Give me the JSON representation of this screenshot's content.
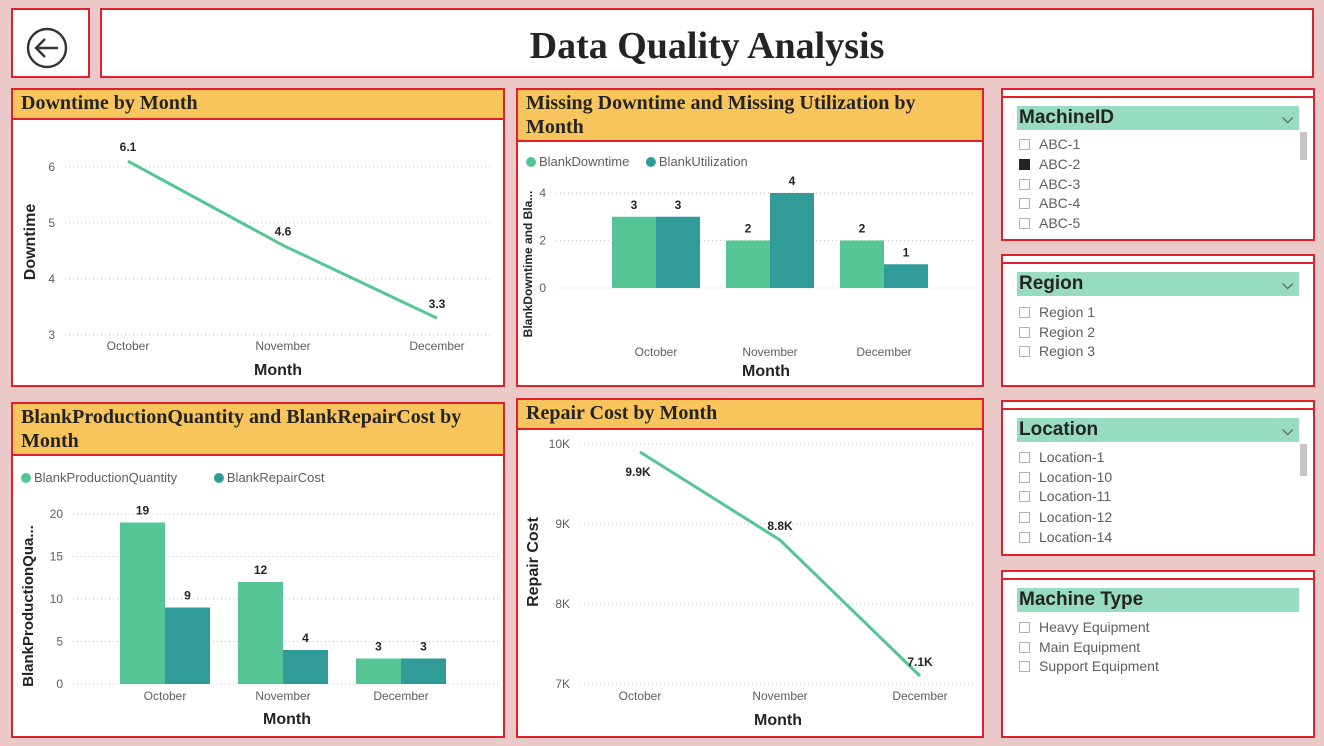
{
  "page_title": "Data Quality Analysis",
  "back_button_icon": "arrow-left-circle-icon",
  "colors": {
    "series1": "#55c595",
    "series2": "#319b99",
    "title_bg": "#f7c55b",
    "border": "#e0212b",
    "slicer_header": "#97dcc0"
  },
  "downtime": {
    "title": "Downtime by Month",
    "xlabel": "Month",
    "ylabel": "Downtime",
    "yticks": [
      "6",
      "5",
      "4",
      "3"
    ],
    "labels": [
      "6.1",
      "4.6",
      "3.3"
    ]
  },
  "missing": {
    "title": "Missing Downtime and Missing Utilization by Month",
    "legend": [
      "BlankDowntime",
      "BlankUtilization"
    ],
    "xlabel": "Month",
    "ylabel": "BlankDowntime and Bla...",
    "yticks": [
      "4",
      "2",
      "0"
    ]
  },
  "blankprod": {
    "title": "BlankProductionQuantity and BlankRepairCost by Month",
    "legend": [
      "BlankProductionQuantity",
      "BlankRepairCost"
    ],
    "xlabel": "Month",
    "ylabel": "BlankProductionQua...",
    "yticks": [
      "20",
      "15",
      "10",
      "5",
      "0"
    ]
  },
  "repair": {
    "title": "Repair Cost by Month",
    "xlabel": "Month",
    "ylabel": "Repair Cost",
    "yticks": [
      "10K",
      "9K",
      "8K",
      "7K"
    ],
    "labels": [
      "9.9K",
      "8.8K",
      "7.1K"
    ]
  },
  "chart_data": [
    {
      "type": "line",
      "title": "Downtime by Month",
      "categories": [
        "October",
        "November",
        "December"
      ],
      "values": [
        6.1,
        4.6,
        3.3
      ],
      "xlabel": "Month",
      "ylabel": "Downtime",
      "ylim": [
        3,
        6.3
      ],
      "grid": true
    },
    {
      "type": "bar",
      "title": "Missing Downtime and Missing Utilization by Month",
      "categories": [
        "October",
        "November",
        "December"
      ],
      "series": [
        {
          "name": "BlankDowntime",
          "values": [
            3,
            2,
            2
          ]
        },
        {
          "name": "BlankUtilization",
          "values": [
            3,
            4,
            1
          ]
        }
      ],
      "xlabel": "Month",
      "ylabel": "BlankDowntime and Bla...",
      "ylim": [
        0,
        4
      ],
      "legend": "top-left",
      "grid": true
    },
    {
      "type": "bar",
      "title": "BlankProductionQuantity and BlankRepairCost by Month",
      "categories": [
        "October",
        "November",
        "December"
      ],
      "series": [
        {
          "name": "BlankProductionQuantity",
          "values": [
            19,
            12,
            3
          ]
        },
        {
          "name": "BlankRepairCost",
          "values": [
            9,
            4,
            3
          ]
        }
      ],
      "xlabel": "Month",
      "ylabel": "BlankProductionQua...",
      "ylim": [
        0,
        20
      ],
      "legend": "top-left",
      "grid": true
    },
    {
      "type": "line",
      "title": "Repair Cost by Month",
      "categories": [
        "October",
        "November",
        "December"
      ],
      "values": [
        9900,
        8800,
        7100
      ],
      "xlabel": "Month",
      "ylabel": "Repair Cost",
      "ylim": [
        7000,
        10000
      ],
      "grid": true
    }
  ],
  "slicers": {
    "machine": {
      "title": "MachineID",
      "items": [
        "ABC-1",
        "ABC-2",
        "ABC-3",
        "ABC-4",
        "ABC-5"
      ],
      "checked": "ABC-2"
    },
    "region": {
      "title": "Region",
      "items": [
        "Region 1",
        "Region 2",
        "Region 3"
      ]
    },
    "location": {
      "title": "Location",
      "items": [
        "Location-1",
        "Location-10",
        "Location-11",
        "Location-12",
        "Location-14"
      ]
    },
    "mtype": {
      "title": "Machine Type",
      "items": [
        "Heavy Equipment",
        "Main Equipment",
        "Support Equipment"
      ]
    }
  }
}
